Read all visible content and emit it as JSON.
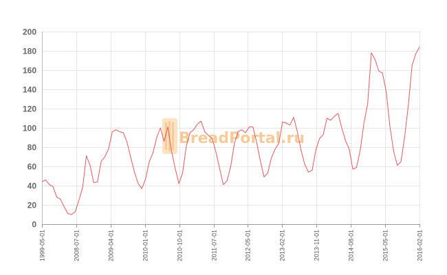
{
  "watermark": {
    "text": "BreadPortal.ru",
    "color": "#f3cc9a"
  },
  "chart_data": {
    "type": "line",
    "title": "",
    "xlabel": "",
    "ylabel": "",
    "ylim": [
      0,
      200
    ],
    "yticks": [
      0,
      20,
      40,
      60,
      80,
      100,
      120,
      140,
      160,
      180,
      200
    ],
    "grid": true,
    "x_tick_labels": [
      "1999-05-01",
      "2008-07-01",
      "2009-04-01",
      "2010-01-01",
      "2010-10-01",
      "2011-07-01",
      "2012-05-01",
      "2013-02-01",
      "2013-11-01",
      "2014-08-01",
      "2015-05-01",
      "2016-02-01"
    ],
    "line_color": "#e8585a",
    "values": [
      44,
      46,
      41,
      39,
      28,
      26,
      18,
      11,
      10,
      13,
      25,
      38,
      71,
      61,
      43,
      44,
      65,
      70,
      78,
      96,
      98,
      96,
      95,
      85,
      69,
      54,
      42,
      37,
      47,
      65,
      74,
      90,
      100,
      86,
      101,
      76,
      58,
      42,
      53,
      81,
      95,
      98,
      104,
      107,
      96,
      92,
      89,
      75,
      58,
      41,
      45,
      60,
      84,
      96,
      98,
      95,
      101,
      101,
      85,
      66,
      49,
      53,
      69,
      78,
      84,
      106,
      105,
      103,
      111,
      96,
      77,
      62,
      54,
      56,
      77,
      89,
      93,
      110,
      108,
      112,
      115,
      100,
      87,
      78,
      57,
      59,
      77,
      105,
      125,
      178,
      171,
      159,
      157,
      138,
      102,
      76,
      61,
      65,
      91,
      124,
      165,
      177,
      184
    ]
  }
}
